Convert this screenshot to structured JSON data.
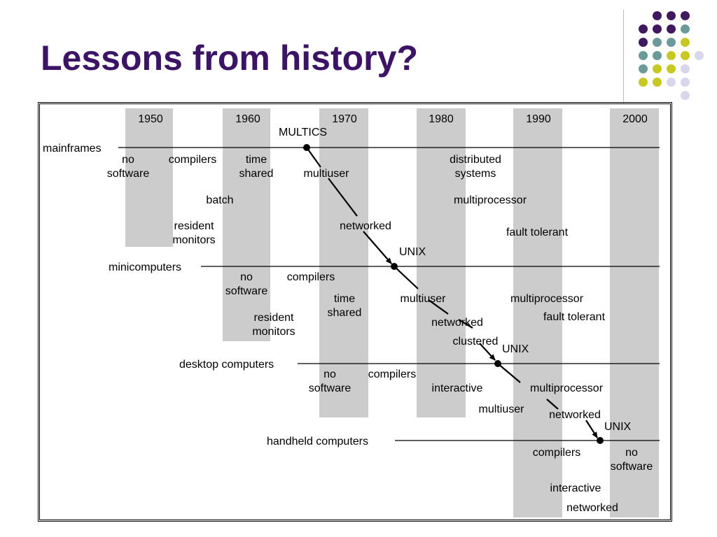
{
  "slide": {
    "title": "Lessons from history?",
    "colors": {
      "title": "#3b1466",
      "purple": "#3f1860",
      "teal": "#6b9a9a",
      "yellow": "#c8c822",
      "lilac": "#d8d6ea",
      "band": "#cccccc"
    }
  },
  "diagram": {
    "decades": [
      "1950",
      "1960",
      "1970",
      "1980",
      "1990",
      "2000"
    ],
    "tiers": [
      {
        "label": "mainframes",
        "milestone": "MULTICS"
      },
      {
        "label": "minicomputers",
        "milestone": "UNIX"
      },
      {
        "label": "desktop computers",
        "milestone": "UNIX"
      },
      {
        "label": "handheld computers",
        "milestone": "UNIX"
      }
    ],
    "annotations": {
      "mainframes": {
        "no_software": "no\nsoftware",
        "compilers": "compilers",
        "time_shared": "time\nshared",
        "multiuser": "multiuser",
        "distributed_systems": "distributed\nsystems",
        "batch": "batch",
        "multiprocessor": "multiprocessor",
        "resident_monitors": "resident\nmonitors",
        "networked": "networked",
        "fault_tolerant": "fault tolerant"
      },
      "minicomputers": {
        "no_software": "no\nsoftware",
        "compilers": "compilers",
        "time_shared": "time\nshared",
        "multiuser": "multiuser",
        "multiprocessor": "multiprocessor",
        "resident_monitors": "resident\nmonitors",
        "networked": "networked",
        "fault_tolerant": "fault tolerant",
        "clustered": "clustered"
      },
      "desktop": {
        "no_software": "no\nsoftware",
        "compilers": "compilers",
        "interactive": "interactive",
        "multiprocessor": "multiprocessor",
        "multiuser": "multiuser",
        "networked": "networked"
      },
      "handheld": {
        "compilers": "compilers",
        "no_software": "no\nsoftware",
        "interactive": "interactive",
        "networked": "networked"
      }
    }
  }
}
